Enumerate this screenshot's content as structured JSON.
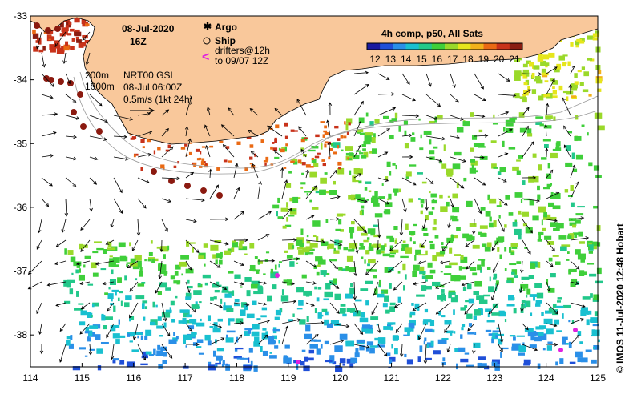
{
  "map": {
    "date": "08-Jul-2020",
    "time": "16Z",
    "colorbar_title": "4h comp, p50, All Sats",
    "colorbar_ticks": [
      "12",
      "13",
      "14",
      "15",
      "16",
      "17",
      "18",
      "19",
      "20",
      "21"
    ],
    "colorbar_colors": [
      "#1a1aa0",
      "#1f4fd8",
      "#2a8fe8",
      "#19c0d0",
      "#22c88a",
      "#3fcf3a",
      "#9ad92a",
      "#e6e61c",
      "#f2b21a",
      "#ea6a14",
      "#c8321a",
      "#8a1e12"
    ],
    "legend": {
      "argo_label": "Argo",
      "ship_label": "Ship",
      "drifters_line1": "drifters@12h",
      "drifters_line2": "to 09/07 12Z",
      "argo_color": "#e020e0",
      "drifter_color": "#e020e0"
    },
    "depth_labels": [
      "200m",
      "1000m"
    ],
    "product": {
      "line1": "NRT00 GSL",
      "line2": "08-Jul 06:00Z",
      "line3": "0.5m/s (1kt 24h)"
    },
    "credit": "© IMOS 11-Jul-2020 12:48 Hobart",
    "x_ticks": [
      "114",
      "115",
      "116",
      "117",
      "118",
      "119",
      "120",
      "121",
      "122",
      "123",
      "124",
      "125"
    ],
    "y_ticks": [
      "-33",
      "-34",
      "-35",
      "-36",
      "-37",
      "-38"
    ],
    "land_color": "#f9c89b",
    "sst_samples": {
      "swell_band_temps": [
        12.5,
        13.2,
        14.1,
        15.0,
        16.3,
        17.8,
        19.5,
        20.6
      ]
    }
  }
}
